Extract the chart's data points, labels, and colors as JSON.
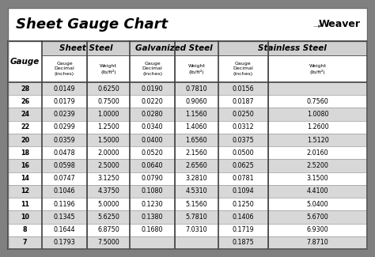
{
  "title": "Sheet Gauge Chart",
  "bg_outer": "#808080",
  "bg_inner": "#ffffff",
  "row_even": "#d8d8d8",
  "row_odd": "#ffffff",
  "header_section_bg": "#ffffff",
  "border_dark": "#404040",
  "border_mid": "#888888",
  "gauges": [
    28,
    26,
    24,
    22,
    20,
    18,
    16,
    14,
    12,
    11,
    10,
    8,
    7
  ],
  "sheet_steel_dec": [
    "0.0149",
    "0.0179",
    "0.0239",
    "0.0299",
    "0.0359",
    "0.0478",
    "0.0598",
    "0.0747",
    "0.1046",
    "0.1196",
    "0.1345",
    "0.1644",
    "0.1793"
  ],
  "sheet_steel_wt": [
    "0.6250",
    "0.7500",
    "1.0000",
    "1.2500",
    "1.5000",
    "2.0000",
    "2.5000",
    "3.1250",
    "4.3750",
    "5.0000",
    "5.6250",
    "6.8750",
    "7.5000"
  ],
  "galv_dec": [
    "0.0190",
    "0.0220",
    "0.0280",
    "0.0340",
    "0.0400",
    "0.0520",
    "0.0640",
    "0.0790",
    "0.1080",
    "0.1230",
    "0.1380",
    "0.1680",
    ""
  ],
  "galv_wt": [
    "0.7810",
    "0.9060",
    "1.1560",
    "1.4060",
    "1.6560",
    "2.1560",
    "2.6560",
    "3.2810",
    "4.5310",
    "5.1560",
    "5.7810",
    "7.0310",
    ""
  ],
  "stain_dec": [
    "0.0156",
    "0.0187",
    "0.0250",
    "0.0312",
    "0.0375",
    "0.0500",
    "0.0625",
    "0.0781",
    "0.1094",
    "0.1250",
    "0.1406",
    "0.1719",
    "0.1875"
  ],
  "stain_wt": [
    "",
    "0.7560",
    "1.0080",
    "1.2600",
    "1.5120",
    "2.0160",
    "2.5200",
    "3.1500",
    "4.4100",
    "5.0400",
    "5.6700",
    "6.9300",
    "7.8710"
  ],
  "figsize": [
    4.74,
    3.25
  ],
  "dpi": 100
}
